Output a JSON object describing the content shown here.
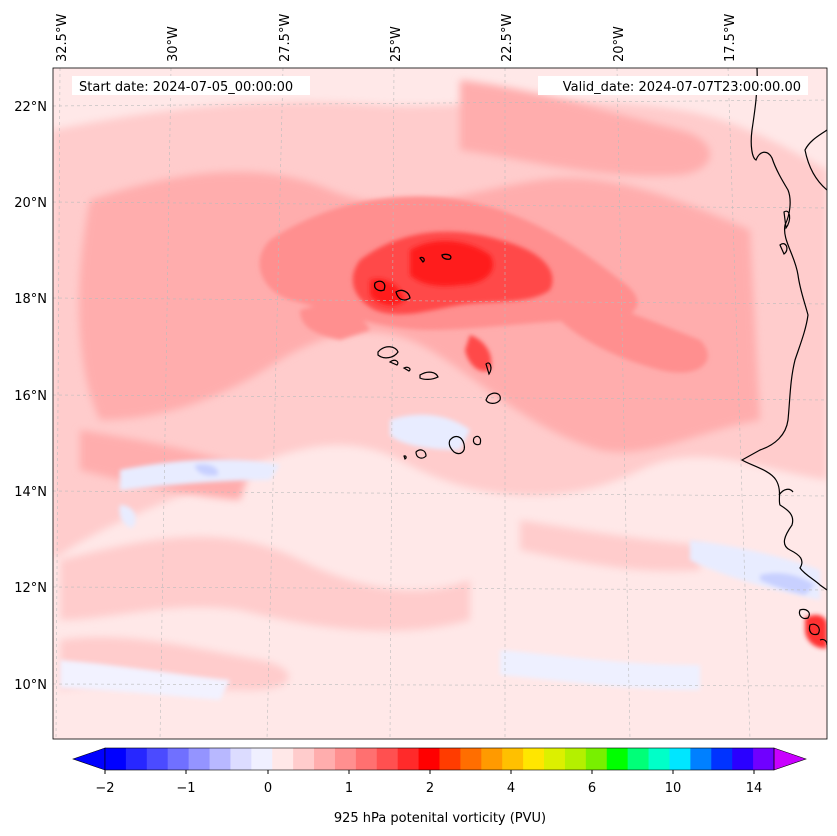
{
  "map": {
    "start_date_text": "Start date: 2024-07-05_00:00:00",
    "valid_date_text": "Valid_date: 2024-07-07T23:00:00.00",
    "longitude_labels": [
      "32.5°W",
      "30°W",
      "27.5°W",
      "25°W",
      "22.5°W",
      "20°W",
      "17.5°W"
    ],
    "latitude_labels": [
      "22°N",
      "20°N",
      "18°N",
      "16°N",
      "14°N",
      "12°N",
      "10°N"
    ],
    "region": "Cabo Verde islands and West African coast",
    "field_colors": {
      "background": "#ffe8e8",
      "light": "#ffcccc",
      "mid": "#ffadad",
      "strong": "#ff7a7a",
      "core": "#ff3030",
      "peak": "#ff0000",
      "negative": "#e8ecff",
      "negative_strong": "#c8d0ff"
    }
  },
  "colorbar": {
    "label": "925 hPa potenital vorticity (PVU)",
    "ticks": [
      "−2",
      "−1",
      "0",
      "1",
      "2",
      "4",
      "6",
      "10",
      "14"
    ],
    "colors": [
      "#0000ff",
      "#2727ff",
      "#4b4bff",
      "#7070ff",
      "#9494ff",
      "#b8b8ff",
      "#dcdcff",
      "#f0f0ff",
      "#ffe8e8",
      "#ffcccc",
      "#ffadad",
      "#ff8f8f",
      "#ff7070",
      "#ff5050",
      "#ff2a2a",
      "#ff0000",
      "#ff3c00",
      "#ff6e00",
      "#ff9a00",
      "#ffc000",
      "#ffe600",
      "#dcf000",
      "#b4f000",
      "#78f000",
      "#00ff00",
      "#00ff78",
      "#00ffc8",
      "#00e6ff",
      "#0080ff",
      "#0033ff",
      "#2a00ff",
      "#7000ff"
    ],
    "extend_low_color": "#0000ff",
    "extend_high_color": "#c800ff"
  }
}
